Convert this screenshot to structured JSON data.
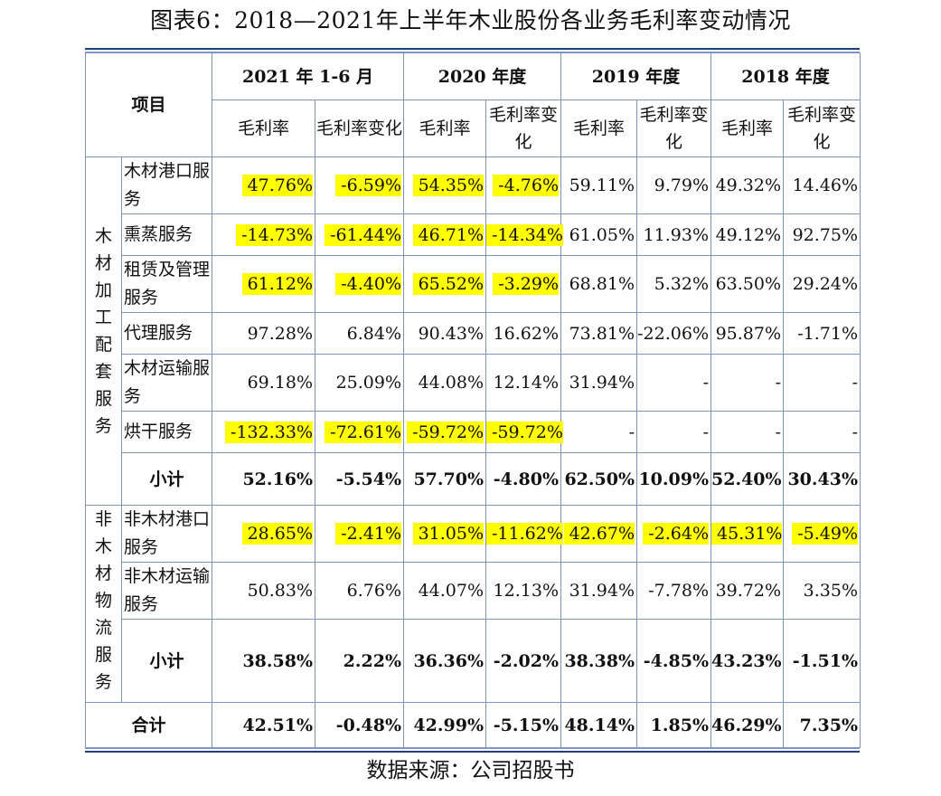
{
  "title": "图表6：2018—2021年上半年木业股份各业务毛利率变动情况",
  "source": "数据来源：公司招股书",
  "table": {
    "item_header": "项目",
    "periods": [
      "2021 年 1-6 月",
      "2020 年度",
      "2019 年度",
      "2018 年度"
    ],
    "sub_headers": {
      "rate": "毛利率",
      "change_2021": "毛利率变化",
      "change": "毛利率变化"
    },
    "groups": [
      {
        "label": "木材加工配套服务",
        "rows": [
          {
            "name": "木材港口服务",
            "values": [
              "47.76%",
              "-6.59%",
              "54.35%",
              "-4.76%",
              "59.11%",
              "9.79%",
              "49.32%",
              "14.46%"
            ],
            "highlight": [
              true,
              true,
              true,
              true,
              false,
              false,
              false,
              false
            ]
          },
          {
            "name": "熏蒸服务",
            "values": [
              "-14.73%",
              "-61.44%",
              "46.71%",
              "-14.34%",
              "61.05%",
              "11.93%",
              "49.12%",
              "92.75%"
            ],
            "highlight": [
              true,
              true,
              true,
              true,
              false,
              false,
              false,
              false
            ]
          },
          {
            "name": "租赁及管理服务",
            "values": [
              "61.12%",
              "-4.40%",
              "65.52%",
              "-3.29%",
              "68.81%",
              "5.32%",
              "63.50%",
              "29.24%"
            ],
            "highlight": [
              true,
              true,
              true,
              true,
              false,
              false,
              false,
              false
            ]
          },
          {
            "name": "代理服务",
            "values": [
              "97.28%",
              "6.84%",
              "90.43%",
              "16.62%",
              "73.81%",
              "-22.06%",
              "95.87%",
              "-1.71%"
            ],
            "highlight": [
              false,
              false,
              false,
              false,
              false,
              false,
              false,
              false
            ]
          },
          {
            "name": "木材运输服务",
            "values": [
              "69.18%",
              "25.09%",
              "44.08%",
              "12.14%",
              "31.94%",
              "-",
              "-",
              "-"
            ],
            "highlight": [
              false,
              false,
              false,
              false,
              false,
              false,
              false,
              false
            ]
          },
          {
            "name": "烘干服务",
            "values": [
              "-132.33%",
              "-72.61%",
              "-59.72%",
              "-59.72%",
              "-",
              "-",
              "-",
              "-"
            ],
            "highlight": [
              true,
              true,
              true,
              true,
              false,
              false,
              false,
              false
            ]
          }
        ],
        "subtotal": {
          "name": "小计",
          "values": [
            "52.16%",
            "-5.54%",
            "57.70%",
            "-4.80%",
            "62.50%",
            "10.09%",
            "52.40%",
            "30.43%"
          ]
        }
      },
      {
        "label": "非木材物流服务",
        "rows": [
          {
            "name": "非木材港口服务",
            "values": [
              "28.65%",
              "-2.41%",
              "31.05%",
              "-11.62%",
              "42.67%",
              "-2.64%",
              "45.31%",
              "-5.49%"
            ],
            "highlight": [
              true,
              true,
              true,
              true,
              true,
              true,
              true,
              true
            ]
          },
          {
            "name": "非木材运输服务",
            "values": [
              "50.83%",
              "6.76%",
              "44.07%",
              "12.13%",
              "31.94%",
              "-7.78%",
              "39.72%",
              "3.35%"
            ],
            "highlight": [
              false,
              false,
              false,
              false,
              false,
              false,
              false,
              false
            ]
          }
        ],
        "subtotal": {
          "name": "小计",
          "values": [
            "38.58%",
            "2.22%",
            "36.36%",
            "-2.02%",
            "38.38%",
            "-4.85%",
            "43.23%",
            "-1.51%"
          ]
        }
      }
    ],
    "total": {
      "name": "合计",
      "values": [
        "42.51%",
        "-0.48%",
        "42.99%",
        "-5.15%",
        "48.14%",
        "1.85%",
        "46.29%",
        "7.35%"
      ]
    }
  },
  "colors": {
    "highlight": "#ffff00",
    "border": "#7b93c1",
    "rule": "#1f3f7a"
  }
}
